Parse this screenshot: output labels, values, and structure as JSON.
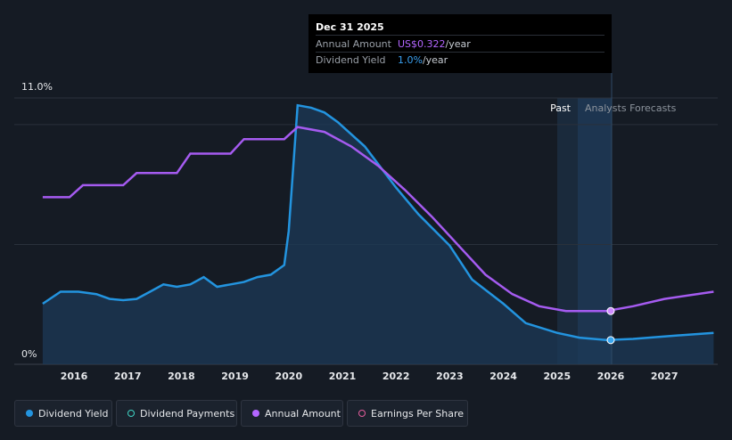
{
  "tooltip": {
    "date": "Dec 31 2025",
    "annual_amount_label": "Annual Amount",
    "annual_amount_value": "US$0.322",
    "annual_amount_unit": "/year",
    "dividend_yield_label": "Dividend Yield",
    "dividend_yield_value": "1.0%",
    "dividend_yield_unit": "/year"
  },
  "regions": {
    "past_label": "Past",
    "forecast_label": "Analysts Forecasts"
  },
  "legend": {
    "items": [
      {
        "label": "Dividend Yield",
        "color": "#2394df",
        "filled": true
      },
      {
        "label": "Dividend Payments",
        "color": "#3fd3c4",
        "filled": false
      },
      {
        "label": "Annual Amount",
        "color": "#b366ff",
        "filled": true
      },
      {
        "label": "Earnings Per Share",
        "color": "#e45d9c",
        "filled": false
      }
    ]
  },
  "colors": {
    "yield": "#2394df",
    "amount": "#a55bf0",
    "background": "#151b24"
  },
  "chart_data": {
    "type": "line",
    "x_range": [
      "2015-06",
      "2027-12"
    ],
    "y_range": [
      0,
      11
    ],
    "y_ticks": [
      "11.0%",
      "0%"
    ],
    "x_ticks": [
      "2016",
      "2017",
      "2018",
      "2019",
      "2020",
      "2021",
      "2022",
      "2023",
      "2024",
      "2025",
      "2026",
      "2027"
    ],
    "past_forecast_boundary": "2025-12-31",
    "series": [
      {
        "name": "Dividend Yield",
        "unit": "%",
        "points": [
          [
            "2015-06",
            2.5
          ],
          [
            "2015-10",
            3.0
          ],
          [
            "2016-02",
            3.0
          ],
          [
            "2016-06",
            2.9
          ],
          [
            "2016-09",
            2.7
          ],
          [
            "2016-12",
            2.65
          ],
          [
            "2017-03",
            2.7
          ],
          [
            "2017-06",
            3.0
          ],
          [
            "2017-09",
            3.3
          ],
          [
            "2017-12",
            3.2
          ],
          [
            "2018-03",
            3.3
          ],
          [
            "2018-06",
            3.6
          ],
          [
            "2018-09",
            3.2
          ],
          [
            "2018-12",
            3.3
          ],
          [
            "2019-03",
            3.4
          ],
          [
            "2019-06",
            3.6
          ],
          [
            "2019-09",
            3.7
          ],
          [
            "2019-12",
            4.1
          ],
          [
            "2020-01",
            5.5
          ],
          [
            "2020-03",
            10.7
          ],
          [
            "2020-06",
            10.6
          ],
          [
            "2020-09",
            10.4
          ],
          [
            "2020-12",
            10.0
          ],
          [
            "2021-06",
            9.0
          ],
          [
            "2022-01",
            7.3
          ],
          [
            "2022-06",
            6.2
          ],
          [
            "2023-01",
            4.9
          ],
          [
            "2023-06",
            3.5
          ],
          [
            "2024-01",
            2.5
          ],
          [
            "2024-06",
            1.7
          ],
          [
            "2025-01",
            1.3
          ],
          [
            "2025-06",
            1.1
          ],
          [
            "2025-12",
            1.0
          ],
          [
            "2026-06",
            1.05
          ],
          [
            "2027-01",
            1.15
          ],
          [
            "2027-12",
            1.3
          ]
        ]
      },
      {
        "name": "Annual Amount",
        "unit": "relative",
        "points": [
          [
            "2015-06",
            6.9
          ],
          [
            "2015-12",
            6.9
          ],
          [
            "2016-03",
            7.4
          ],
          [
            "2016-12",
            7.4
          ],
          [
            "2017-03",
            7.9
          ],
          [
            "2017-12",
            7.9
          ],
          [
            "2018-03",
            8.7
          ],
          [
            "2018-12",
            8.7
          ],
          [
            "2019-03",
            9.3
          ],
          [
            "2019-12",
            9.3
          ],
          [
            "2020-03",
            9.8
          ],
          [
            "2020-09",
            9.6
          ],
          [
            "2021-03",
            9.0
          ],
          [
            "2021-09",
            8.2
          ],
          [
            "2022-03",
            7.2
          ],
          [
            "2022-09",
            6.1
          ],
          [
            "2023-03",
            4.9
          ],
          [
            "2023-09",
            3.7
          ],
          [
            "2024-03",
            2.9
          ],
          [
            "2024-09",
            2.4
          ],
          [
            "2025-03",
            2.2
          ],
          [
            "2025-12",
            2.2
          ],
          [
            "2026-06",
            2.4
          ],
          [
            "2027-01",
            2.7
          ],
          [
            "2027-12",
            3.0
          ]
        ]
      }
    ]
  }
}
